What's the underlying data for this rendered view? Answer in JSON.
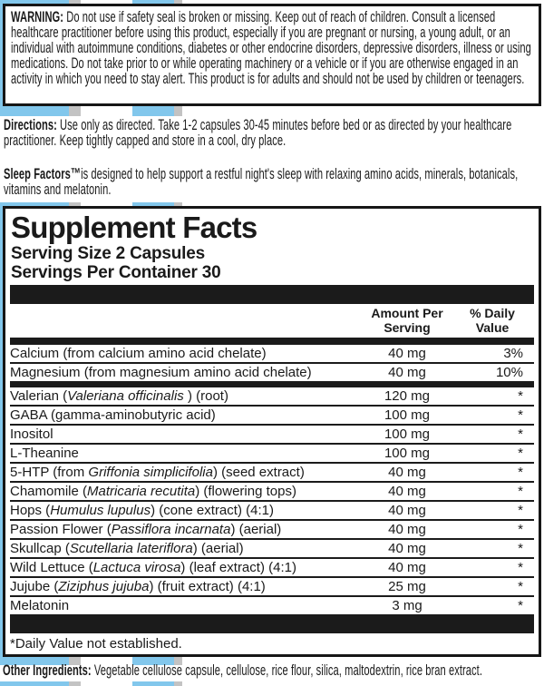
{
  "colors": {
    "stripe_blue": "#82c7ec",
    "stripe_gray": "#c3c3c3",
    "bar_black": "#1b1b1b",
    "ink": "#1a1a1a"
  },
  "warning": {
    "label": "WARNING: ",
    "text": "Do not use if safety seal is broken or missing. Keep out of reach of children. Consult a licensed healthcare practitioner before using this product, especially if you are pregnant or nursing, a young adult, or an individual with autoimmune conditions, diabetes or other endocrine disorders, depressive disorders, illness or using medications. Do not take prior to or while operating machinery or a vehicle or if you are otherwise engaged in an activity in which you need to stay alert. This product is for adults and should not be used by children or teenagers."
  },
  "directions": {
    "label": "Directions: ",
    "text": "Use only as directed. Take 1-2 capsules 30-45 minutes before bed or as directed by your healthcare practitioner. Keep tightly capped and store in a cool, dry place."
  },
  "description": {
    "brand": "Sleep Factors™",
    "text": "is designed to help support a restful night's sleep with relaxing amino acids, minerals, botanicals, vitamins and melatonin."
  },
  "supplement_facts": {
    "title": "Supplement Facts",
    "serving_size": "Serving Size 2 Capsules",
    "servings_per_container": "Servings Per Container 30",
    "columns": {
      "amount_line1": "Amount Per",
      "amount_line2": "Serving",
      "dv_line1": "% Daily",
      "dv_line2": "Value"
    },
    "rows": [
      {
        "pre": "Calcium (from calcium amino acid chelate)",
        "italic": "",
        "post": "",
        "amount": "40 mg",
        "dv": "3%"
      },
      {
        "pre": "Magnesium (from magnesium amino acid chelate)",
        "italic": "",
        "post": "",
        "amount": "40 mg",
        "dv": "10%",
        "bar_after": true
      },
      {
        "pre": "Valerian (",
        "italic": "Valeriana officinalis",
        "post": " ) (root)",
        "amount": "120 mg",
        "dv": "*"
      },
      {
        "pre": "GABA (gamma-aminobutyric acid)",
        "italic": "",
        "post": "",
        "amount": "100 mg",
        "dv": "*"
      },
      {
        "pre": "Inositol",
        "italic": "",
        "post": "",
        "amount": "100 mg",
        "dv": "*"
      },
      {
        "pre": "L-Theanine",
        "italic": "",
        "post": "",
        "amount": "100 mg",
        "dv": "*"
      },
      {
        "pre": "5-HTP (from ",
        "italic": "Griffonia simplicifolia",
        "post": ") (seed extract)",
        "amount": "40 mg",
        "dv": "*"
      },
      {
        "pre": "Chamomile (",
        "italic": "Matricaria recutita",
        "post": ") (flowering tops)",
        "amount": "40 mg",
        "dv": "*"
      },
      {
        "pre": "Hops (",
        "italic": "Humulus lupulus",
        "post": ") (cone extract) (4:1)",
        "amount": "40 mg",
        "dv": "*"
      },
      {
        "pre": "Passion Flower (",
        "italic": "Passiflora incarnata",
        "post": ") (aerial)",
        "amount": "40 mg",
        "dv": "*"
      },
      {
        "pre": "Skullcap (",
        "italic": "Scutellaria lateriflora",
        "post": ") (aerial)",
        "amount": "40 mg",
        "dv": "*"
      },
      {
        "pre": "Wild Lettuce (",
        "italic": "Lactuca virosa",
        "post": ") (leaf extract) (4:1)",
        "amount": "40 mg",
        "dv": "*"
      },
      {
        "pre": "Jujube (",
        "italic": "Ziziphus jujuba",
        "post": ") (fruit extract) (4:1)",
        "amount": "25 mg",
        "dv": "*"
      },
      {
        "pre": "Melatonin",
        "italic": "",
        "post": "",
        "amount": "3 mg",
        "dv": "*"
      }
    ],
    "footnote": "*Daily Value not established."
  },
  "other_ingredients": {
    "label": "Other Ingredients: ",
    "text": "Vegetable cellulose capsule, cellulose, rice flour, silica, maltodextrin, rice bran extract."
  }
}
